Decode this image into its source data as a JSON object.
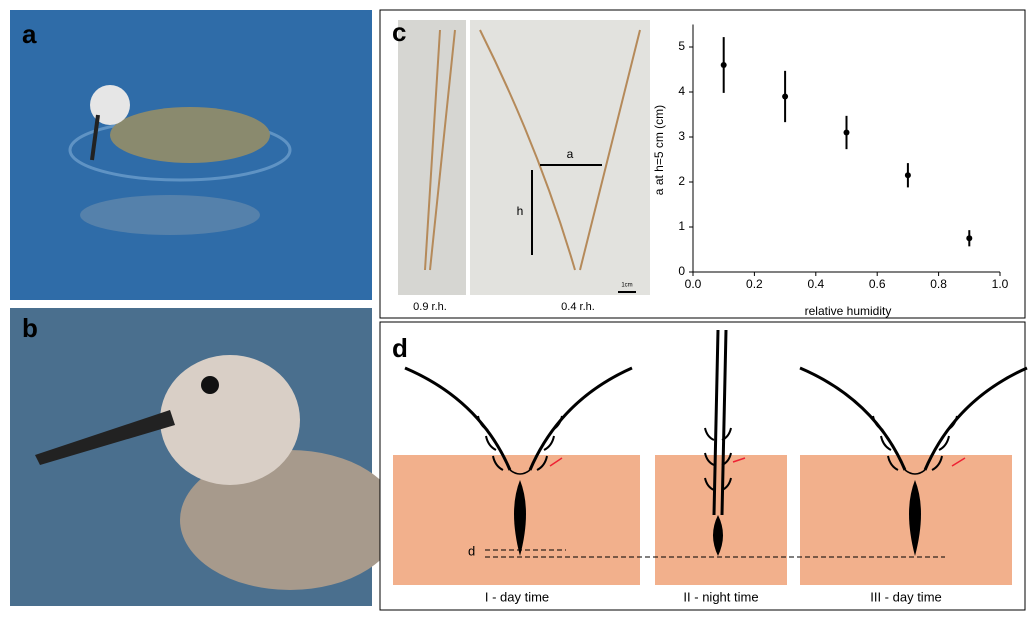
{
  "panels": {
    "a": "a",
    "b": "b",
    "c": "c",
    "d": "d"
  },
  "panel_c_photo": {
    "left_label": "0.9 r.h.",
    "right_label": "0.4 r.h.",
    "a_label": "a",
    "h_label": "h",
    "scale_label": "1cm"
  },
  "panel_d": {
    "stages": [
      "I - day time",
      "II - night time",
      "III - day time"
    ],
    "d_label": "d"
  },
  "chart_data": {
    "type": "scatter",
    "x": [
      0.1,
      0.3,
      0.5,
      0.7,
      0.9
    ],
    "values": [
      4.6,
      3.9,
      3.1,
      2.15,
      0.75
    ],
    "errors": [
      0.62,
      0.57,
      0.37,
      0.27,
      0.18
    ],
    "color": "#000000",
    "xlabel": "relative humidity",
    "ylabel": "a at h=5 cm (cm)",
    "xlim": [
      0,
      1
    ],
    "ylim": [
      0,
      5.5
    ],
    "xticks": [
      {
        "value": 0,
        "label": "0.0"
      },
      0.2,
      0.4,
      0.6,
      0.8,
      {
        "value": 1,
        "label": "1.0"
      }
    ],
    "yticks": [
      0,
      1,
      2,
      3,
      4,
      5
    ]
  }
}
